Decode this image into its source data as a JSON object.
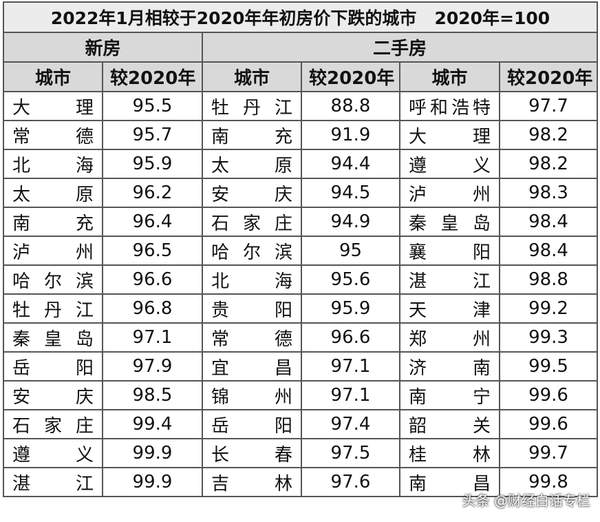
{
  "table": {
    "title": "2022年1月相较于2020年年初房价下跌的城市   2020年=100",
    "groups": [
      "新房",
      "二手房"
    ],
    "headers": [
      "城市",
      "较2020年",
      "城市",
      "较2020年",
      "城市",
      "较2020年"
    ],
    "rows": [
      [
        "大理",
        95.5,
        "牡丹江",
        88.8,
        "呼和浩特",
        97.7
      ],
      [
        "常德",
        95.7,
        "南充",
        91.9,
        "大理",
        98.2
      ],
      [
        "北海",
        95.9,
        "太原",
        94.4,
        "遵义",
        98.2
      ],
      [
        "太原",
        96.2,
        "安庆",
        94.5,
        "泸州",
        98.3
      ],
      [
        "南充",
        96.4,
        "石家庄",
        94.9,
        "秦皇岛",
        98.4
      ],
      [
        "泸州",
        96.5,
        "哈尔滨",
        95,
        "襄阳",
        98.4
      ],
      [
        "哈尔滨",
        96.6,
        "北海",
        95.6,
        "湛江",
        98.8
      ],
      [
        "牡丹江",
        96.8,
        "贵阳",
        95.9,
        "天津",
        99.2
      ],
      [
        "秦皇岛",
        97.1,
        "常德",
        96.6,
        "郑州",
        99.3
      ],
      [
        "岳阳",
        97.9,
        "宜昌",
        97.1,
        "济南",
        99.5
      ],
      [
        "安庆",
        98.5,
        "锦州",
        97.1,
        "南宁",
        99.6
      ],
      [
        "石家庄",
        99.4,
        "岳阳",
        97.4,
        "韶关",
        99.6
      ],
      [
        "遵义",
        99.9,
        "长春",
        97.5,
        "桂林",
        99.7
      ],
      [
        "湛江",
        99.9,
        "吉林",
        97.6,
        "南昌",
        99.8
      ]
    ]
  },
  "watermark": "头条 @财经白话专栏"
}
